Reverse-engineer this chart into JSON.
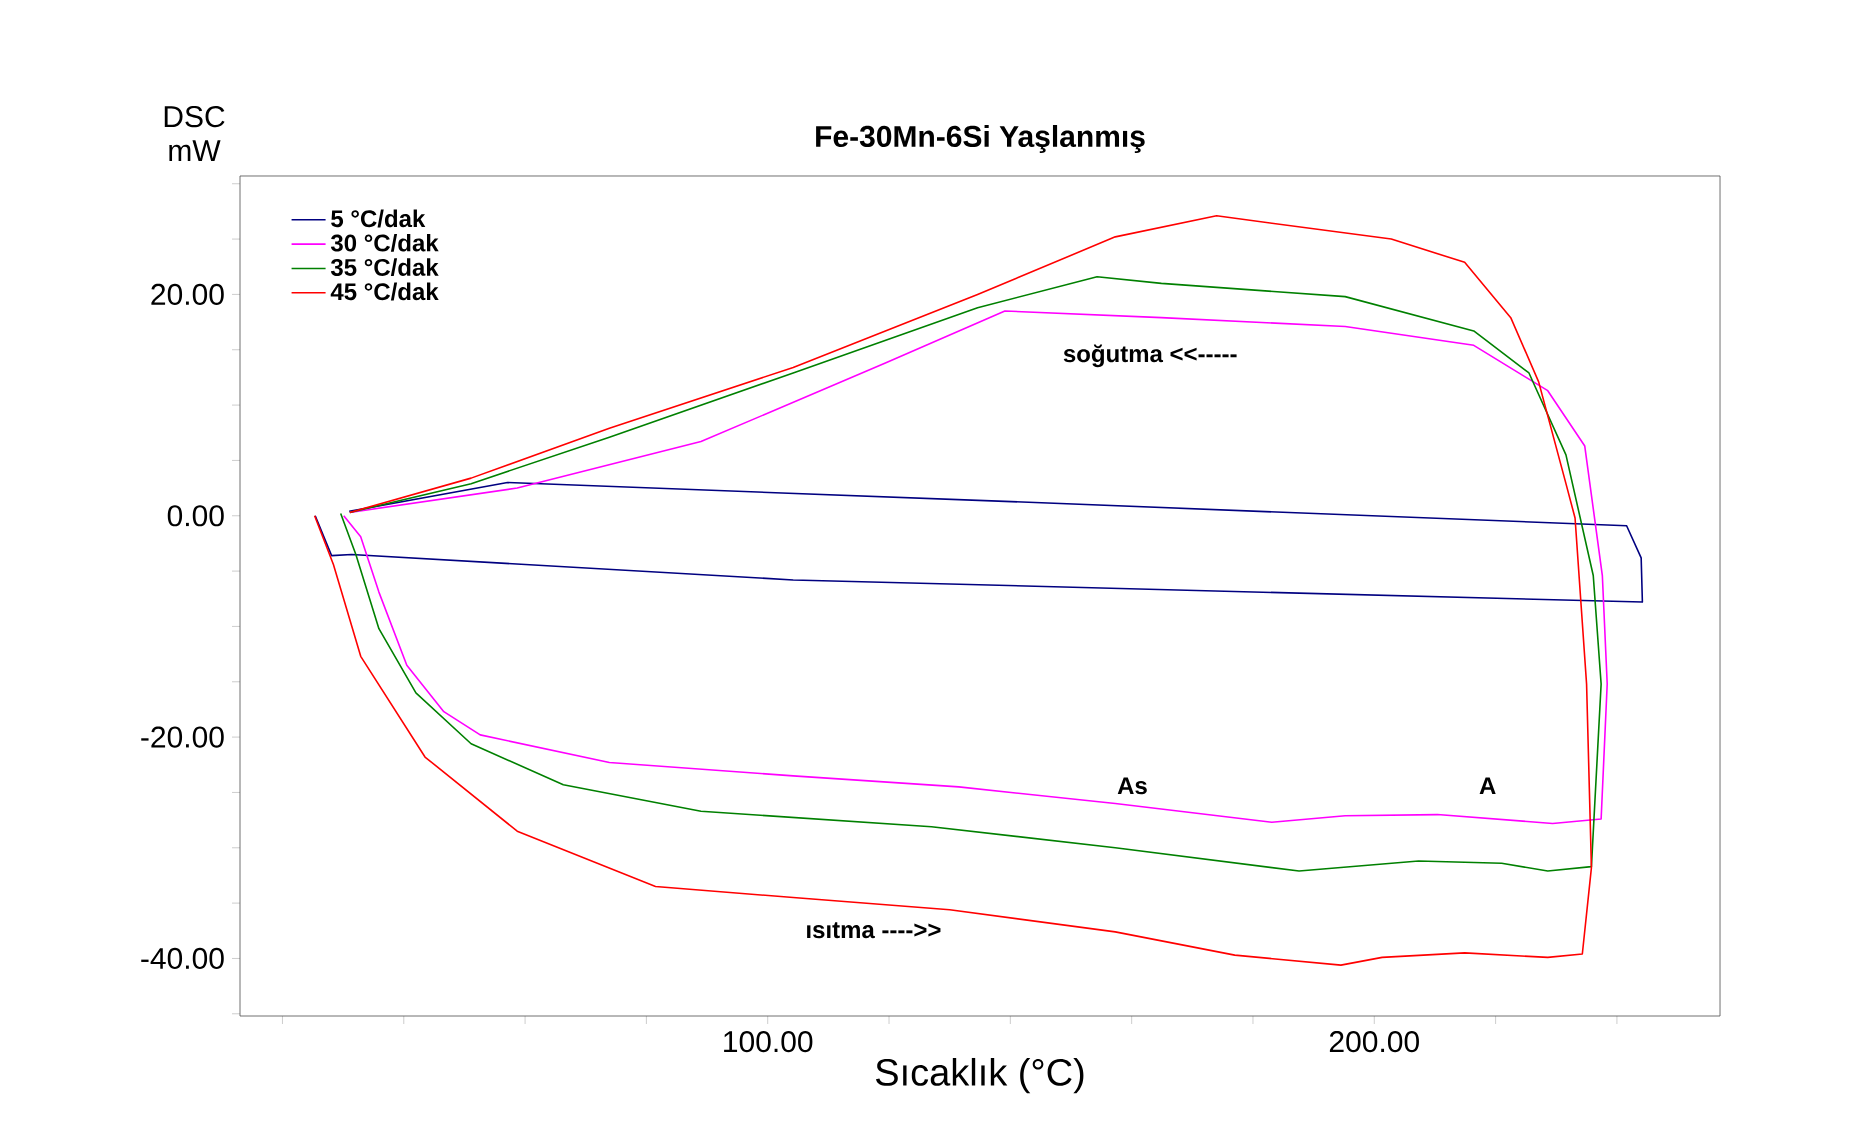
{
  "chart_data": {
    "type": "line",
    "title": "Fe-30Mn-6Si   Yaşlanmış",
    "xlabel": "Sıcaklık (°C)",
    "ylabel": "DSC mW",
    "xlim": [
      13,
      257
    ],
    "ylim": [
      -45.2,
      30.7
    ],
    "xticks": [
      {
        "value": 20,
        "label": null
      },
      {
        "value": 40,
        "label": null
      },
      {
        "value": 60,
        "label": null
      },
      {
        "value": 80,
        "label": null
      },
      {
        "value": 100,
        "label": "100.00"
      },
      {
        "value": 120,
        "label": null
      },
      {
        "value": 140,
        "label": null
      },
      {
        "value": 160,
        "label": null
      },
      {
        "value": 180,
        "label": null
      },
      {
        "value": 200,
        "label": "200.00"
      },
      {
        "value": 220,
        "label": null
      },
      {
        "value": 240,
        "label": null
      }
    ],
    "yticks": [
      {
        "value": -45,
        "label": null
      },
      {
        "value": -40,
        "label": "-40.00"
      },
      {
        "value": -35,
        "label": null
      },
      {
        "value": -30,
        "label": null
      },
      {
        "value": -25,
        "label": null
      },
      {
        "value": -20,
        "label": "-20.00"
      },
      {
        "value": -15,
        "label": null
      },
      {
        "value": -10,
        "label": null
      },
      {
        "value": -5,
        "label": null
      },
      {
        "value": 0,
        "label": "0.00"
      },
      {
        "value": 5,
        "label": null
      },
      {
        "value": 10,
        "label": null
      },
      {
        "value": 15,
        "label": null
      },
      {
        "value": 20,
        "label": "20.00"
      },
      {
        "value": 25,
        "label": null
      },
      {
        "value": 30,
        "label": null
      }
    ],
    "grid": false,
    "legend": "top left",
    "marker": "none",
    "line_style": "solid",
    "series": [
      {
        "name": "5 °C/dak",
        "color": "#000080",
        "x": [
          25.4,
          28.1,
          31.4,
          104.2,
          244.2,
          244.0,
          241.6,
          139.1,
          57.1,
          31.0
        ],
        "values": [
          0.0,
          -3.6,
          -3.5,
          -5.8,
          -7.8,
          -3.8,
          -0.9,
          1.3,
          3.0,
          0.4
        ]
      },
      {
        "name": "30 °C/dak",
        "color": "#ff00ff",
        "x": [
          30.1,
          32.9,
          35.9,
          40.5,
          46.6,
          52.6,
          73.9,
          104.2,
          131.5,
          157.3,
          183.1,
          195.2,
          210.4,
          229.4,
          237.4,
          238.4,
          237.6,
          234.7,
          228.6,
          216.4,
          195.2,
          164.9,
          139.1,
          119.4,
          89.0,
          58.7,
          31.1
        ],
        "values": [
          0.0,
          -1.9,
          -6.9,
          -13.5,
          -17.7,
          -19.8,
          -22.3,
          -23.5,
          -24.5,
          -26.0,
          -27.7,
          -27.1,
          -27.0,
          -27.8,
          -27.4,
          -15.2,
          -5.4,
          6.3,
          11.3,
          15.4,
          17.1,
          17.9,
          18.5,
          13.8,
          6.7,
          2.5,
          0.3
        ]
      },
      {
        "name": "35 °C/dak",
        "color": "#008000",
        "x": [
          29.6,
          32.1,
          35.9,
          42.0,
          51.1,
          66.3,
          89.0,
          127.0,
          157.3,
          187.6,
          207.3,
          221.0,
          228.6,
          235.8,
          237.4,
          236.1,
          231.6,
          225.5,
          216.4,
          195.2,
          164.9,
          154.3,
          134.6,
          104.2,
          73.9,
          51.1,
          31.1
        ],
        "values": [
          0.2,
          -3.5,
          -10.2,
          -16.0,
          -20.6,
          -24.3,
          -26.7,
          -28.1,
          -30.0,
          -32.1,
          -31.2,
          -31.4,
          -32.1,
          -31.7,
          -15.2,
          -5.4,
          5.5,
          12.9,
          16.7,
          19.8,
          21.0,
          21.6,
          18.8,
          12.9,
          7.1,
          2.9,
          0.3
        ]
      },
      {
        "name": "45 °C/dak",
        "color": "#ff0000",
        "x": [
          25.3,
          28.4,
          32.9,
          43.5,
          58.7,
          81.5,
          104.2,
          130.0,
          157.3,
          177.0,
          194.5,
          201.3,
          214.9,
          228.6,
          234.3,
          235.8,
          235.0,
          233.1,
          231.6,
          227.1,
          222.5,
          214.9,
          202.8,
          174.0,
          157.3,
          134.6,
          104.2,
          73.9,
          51.1,
          31.1
        ],
        "values": [
          0.0,
          -4.4,
          -12.7,
          -21.8,
          -28.5,
          -33.5,
          -34.5,
          -35.6,
          -37.6,
          -39.7,
          -40.6,
          -39.9,
          -39.5,
          -39.9,
          -39.6,
          -31.8,
          -15.2,
          -0.2,
          2.9,
          12.1,
          17.9,
          22.9,
          25.0,
          27.1,
          25.2,
          20.0,
          13.4,
          7.9,
          3.4,
          0.3
        ]
      }
    ],
    "annotations": [
      "soğutma <<-----",
      "ısıtma ---->>",
      "As",
      "A"
    ]
  }
}
